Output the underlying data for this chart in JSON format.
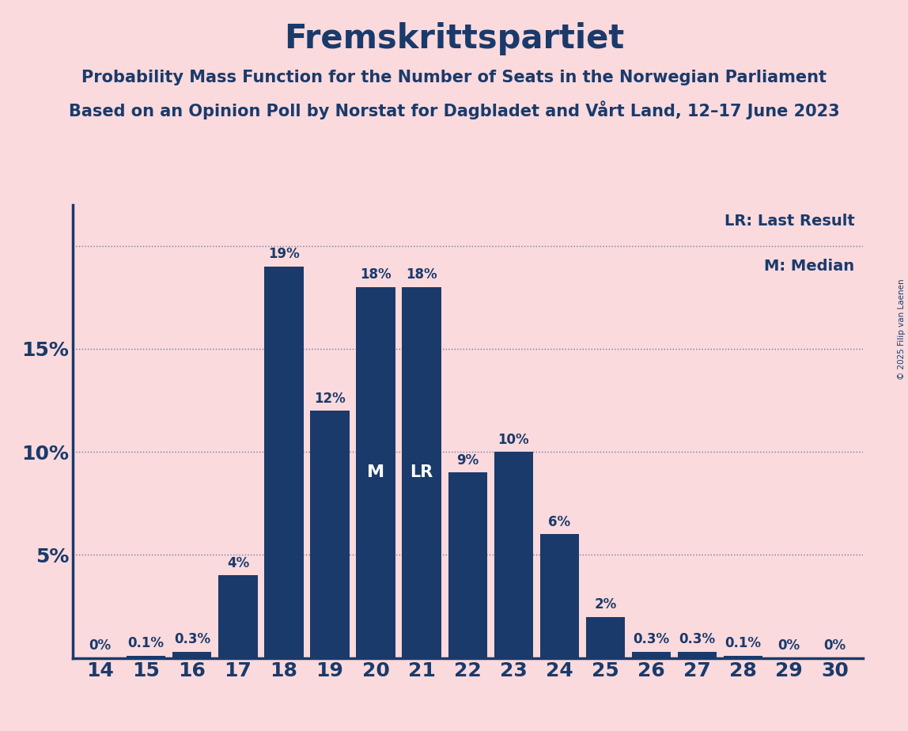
{
  "title": "Fremskrittspartiet",
  "subtitle1": "Probability Mass Function for the Number of Seats in the Norwegian Parliament",
  "subtitle2": "Based on an Opinion Poll by Norstat for Dagbladet and Vårt Land, 12–17 June 2023",
  "copyright": "© 2025 Filip van Laenen",
  "legend_lr": "LR: Last Result",
  "legend_m": "M: Median",
  "categories": [
    14,
    15,
    16,
    17,
    18,
    19,
    20,
    21,
    22,
    23,
    24,
    25,
    26,
    27,
    28,
    29,
    30
  ],
  "values": [
    0.0,
    0.1,
    0.3,
    4.0,
    19.0,
    12.0,
    18.0,
    18.0,
    9.0,
    10.0,
    6.0,
    2.0,
    0.3,
    0.3,
    0.1,
    0.0,
    0.0
  ],
  "labels": [
    "0%",
    "0.1%",
    "0.3%",
    "4%",
    "19%",
    "12%",
    "18%",
    "18%",
    "9%",
    "10%",
    "6%",
    "2%",
    "0.3%",
    "0.3%",
    "0.1%",
    "0%",
    "0%"
  ],
  "bar_color": "#1a3a6b",
  "background_color": "#fadadd",
  "text_color": "#1a3a6b",
  "median_seat": 20,
  "last_result_seat": 21,
  "ylim": [
    0,
    22
  ],
  "yticks": [
    0,
    5,
    10,
    15,
    20
  ],
  "ytick_labels": [
    "",
    "5%",
    "10%",
    "15%",
    ""
  ],
  "grid_yticks": [
    5,
    10,
    15,
    20
  ],
  "title_fontsize": 30,
  "subtitle_fontsize": 15,
  "tick_fontsize": 18,
  "label_fontsize": 12,
  "legend_fontsize": 14,
  "bar_label_fontsize": 12
}
